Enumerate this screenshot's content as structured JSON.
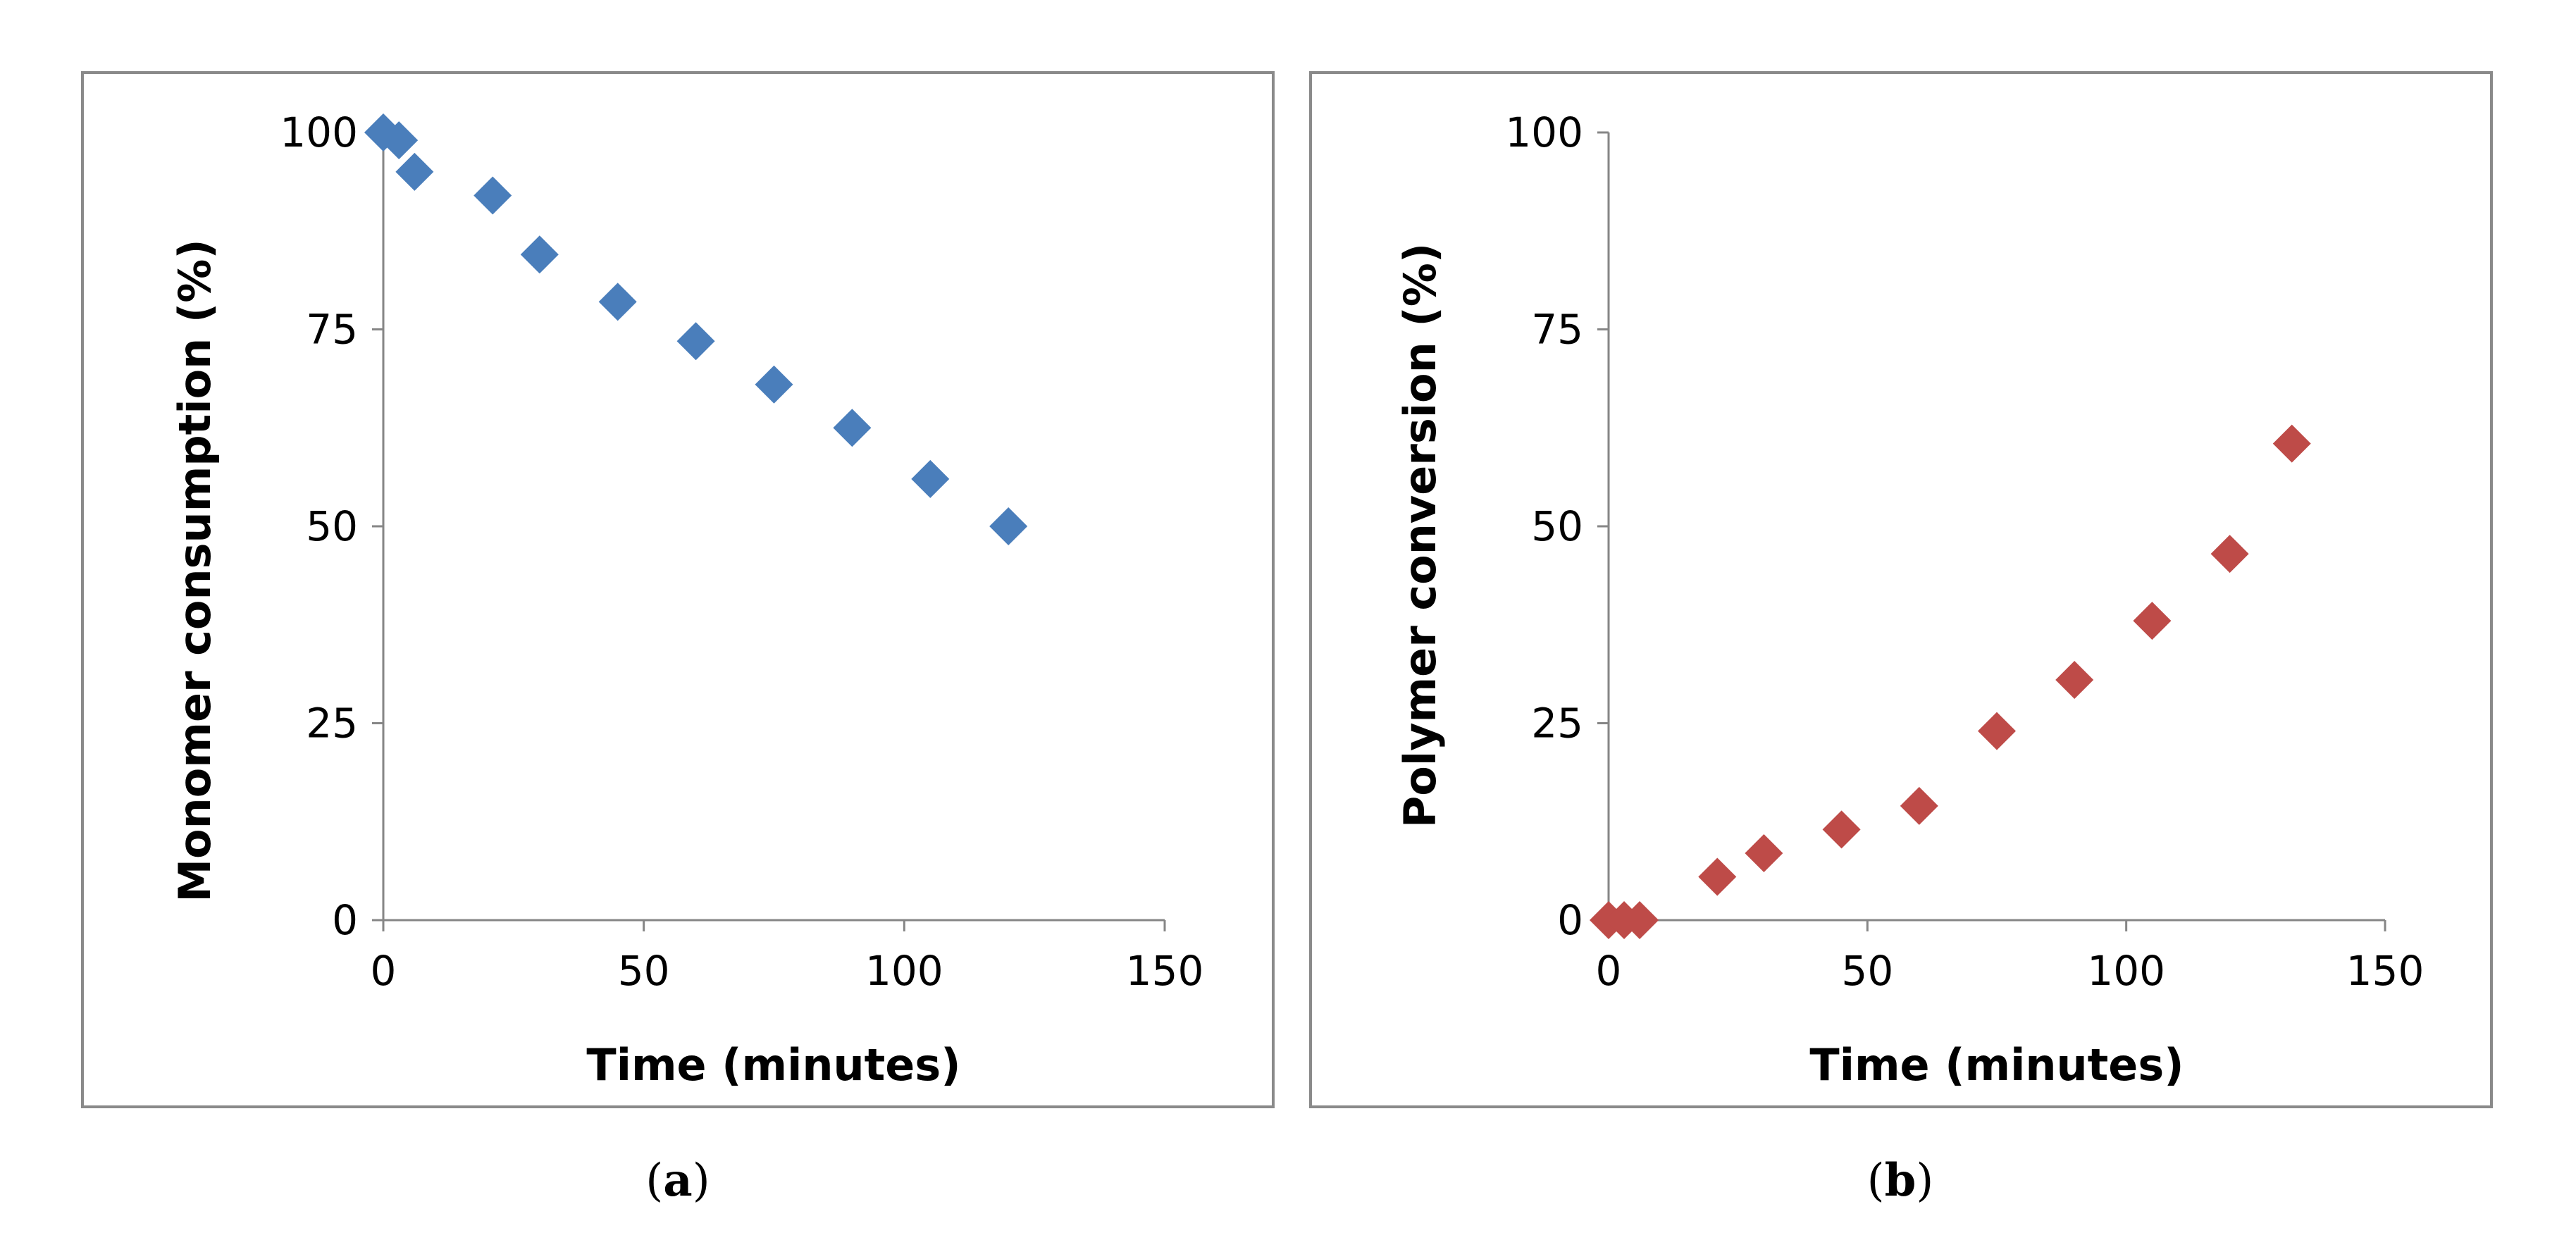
{
  "chart_data": [
    {
      "type": "scatter",
      "panel": "a",
      "caption_label": "a",
      "title": "",
      "xlabel": "Time (minutes)",
      "ylabel": "Monomer consumption (%)",
      "xlim": [
        0,
        150
      ],
      "ylim": [
        0,
        100
      ],
      "xticks": [
        0,
        50,
        100,
        150
      ],
      "yticks": [
        0,
        25,
        50,
        75,
        100
      ],
      "grid": false,
      "marker": "diamond",
      "color": "#4a7ebb",
      "series": [
        {
          "name": "Monomer consumption",
          "x": [
            0,
            3,
            6,
            21,
            30,
            45,
            60,
            75,
            90,
            105,
            120
          ],
          "y": [
            100,
            99,
            95,
            92,
            84.5,
            78.5,
            73.5,
            68,
            62.5,
            56,
            50
          ]
        }
      ]
    },
    {
      "type": "scatter",
      "panel": "b",
      "caption_label": "b",
      "title": "",
      "xlabel": "Time (minutes)",
      "ylabel": "Polymer conversion  (%)",
      "xlim": [
        0,
        150
      ],
      "ylim": [
        0,
        100
      ],
      "xticks": [
        0,
        50,
        100,
        150
      ],
      "yticks": [
        0,
        25,
        50,
        75,
        100
      ],
      "grid": false,
      "marker": "diamond",
      "color": "#be4b48",
      "series": [
        {
          "name": "Polymer conversion",
          "x": [
            0,
            3,
            6,
            21,
            30,
            45,
            60,
            75,
            90,
            105,
            120,
            132
          ],
          "y": [
            0,
            0,
            0,
            5.5,
            8.5,
            11.5,
            14.5,
            24,
            30.5,
            38,
            46.5,
            60.5
          ]
        }
      ]
    }
  ]
}
